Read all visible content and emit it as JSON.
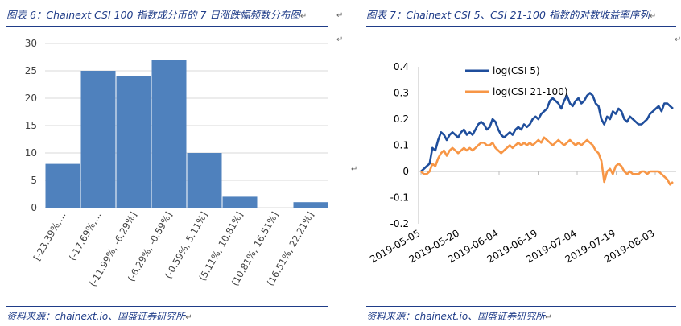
{
  "left_panel": {
    "caption": "图表 6：Chainext CSI 100 指数成分币的 7 日涨跌幅频数分布图",
    "source": "资料来源：chainext.io、国盛证券研究所"
  },
  "right_panel": {
    "caption": "图表 7：Chainext CSI 5、CSI 21-100 指数的对数收益率序列",
    "source": "资料来源：chainext.io、国盛证券研究所"
  },
  "para_mark": "↵",
  "chart_data": [
    {
      "type": "bar",
      "categories": [
        "[-23.39%,…",
        "(-17.69%,…",
        "(-11.99%, -6.29%]",
        "(-6.29%, -0.59%]",
        "(-0.59%, 5.11%]",
        "(5.11%, 10.81%]",
        "(10.81%, 16.51%]",
        "(16.51%, 22.21%]"
      ],
      "values": [
        8,
        25,
        24,
        27,
        10,
        2,
        0,
        1
      ],
      "ylim": [
        0,
        30
      ],
      "yticks": [
        "0",
        "5",
        "10",
        "15",
        "20",
        "25",
        "30"
      ],
      "grid": true,
      "color": "#4f81bd"
    },
    {
      "type": "line",
      "x_ticks": [
        "2019-05-05",
        "2019-05-20",
        "2019-06-04",
        "2019-06-19",
        "2019-07-04",
        "2019-07-19",
        "2019-08-03"
      ],
      "ylim": [
        -0.2,
        0.4
      ],
      "yticks": [
        "-0.2",
        "-0.1",
        "0",
        "0.1",
        "0.2",
        "0.3",
        "0.4"
      ],
      "legend_position": "top-left",
      "series": [
        {
          "name": "log(CSI 5)",
          "color": "#1f4e9c",
          "values": [
            0.0,
            0.01,
            0.02,
            0.03,
            0.09,
            0.08,
            0.12,
            0.15,
            0.14,
            0.12,
            0.14,
            0.15,
            0.14,
            0.13,
            0.15,
            0.16,
            0.14,
            0.15,
            0.14,
            0.16,
            0.18,
            0.19,
            0.18,
            0.16,
            0.17,
            0.2,
            0.19,
            0.16,
            0.14,
            0.13,
            0.14,
            0.15,
            0.14,
            0.16,
            0.17,
            0.16,
            0.18,
            0.17,
            0.18,
            0.2,
            0.21,
            0.2,
            0.22,
            0.23,
            0.24,
            0.27,
            0.28,
            0.27,
            0.26,
            0.24,
            0.27,
            0.29,
            0.26,
            0.25,
            0.27,
            0.28,
            0.26,
            0.27,
            0.29,
            0.3,
            0.29,
            0.26,
            0.25,
            0.2,
            0.18,
            0.21,
            0.2,
            0.23,
            0.22,
            0.24,
            0.23,
            0.2,
            0.19,
            0.21,
            0.2,
            0.19,
            0.18,
            0.18,
            0.19,
            0.2,
            0.22,
            0.23,
            0.24,
            0.25,
            0.23,
            0.26,
            0.26,
            0.25,
            0.24
          ]
        },
        {
          "name": "log(CSI 21-100)",
          "color": "#f79646",
          "values": [
            0.0,
            -0.01,
            -0.01,
            0.0,
            0.03,
            0.02,
            0.05,
            0.07,
            0.08,
            0.06,
            0.08,
            0.09,
            0.08,
            0.07,
            0.08,
            0.09,
            0.08,
            0.09,
            0.08,
            0.09,
            0.1,
            0.11,
            0.11,
            0.1,
            0.1,
            0.11,
            0.09,
            0.08,
            0.07,
            0.08,
            0.09,
            0.1,
            0.09,
            0.1,
            0.11,
            0.1,
            0.11,
            0.1,
            0.11,
            0.1,
            0.11,
            0.12,
            0.11,
            0.13,
            0.12,
            0.11,
            0.1,
            0.11,
            0.12,
            0.11,
            0.1,
            0.11,
            0.12,
            0.11,
            0.1,
            0.11,
            0.1,
            0.11,
            0.12,
            0.11,
            0.1,
            0.08,
            0.07,
            0.04,
            -0.04,
            0.0,
            0.01,
            -0.01,
            0.02,
            0.03,
            0.02,
            0.0,
            -0.01,
            0.0,
            -0.01,
            -0.01,
            -0.01,
            0.0,
            0.0,
            -0.01,
            0.0,
            0.0,
            0.0,
            0.0,
            -0.01,
            -0.02,
            -0.03,
            -0.05,
            -0.04
          ]
        }
      ]
    }
  ]
}
